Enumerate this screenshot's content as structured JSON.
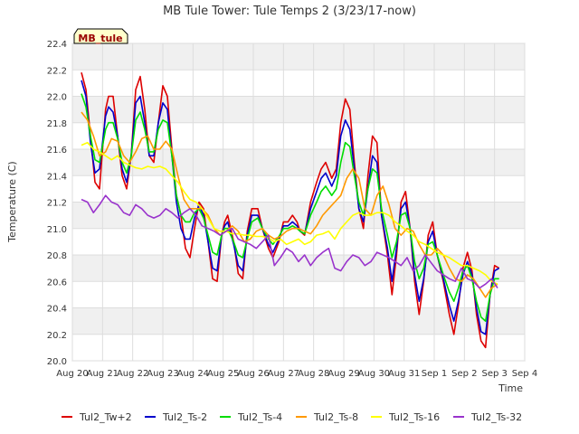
{
  "chart_data": {
    "type": "line",
    "title": "MB Tule Tower: Tule Temps 2 (3/23/17-now)",
    "station_badge": "MB_tule",
    "xlabel": "Time",
    "ylabel": "Temperature (C)",
    "ylim": [
      20.0,
      22.4
    ],
    "xlim": [
      0,
      15
    ],
    "yticks": [
      20.0,
      20.2,
      20.4,
      20.6,
      20.8,
      21.0,
      21.2,
      21.4,
      21.6,
      21.8,
      22.0,
      22.2,
      22.4
    ],
    "xticks": [
      {
        "pos": 0,
        "label": "Aug 20"
      },
      {
        "pos": 1,
        "label": "Aug 21"
      },
      {
        "pos": 2,
        "label": "Aug 22"
      },
      {
        "pos": 3,
        "label": "Aug 23"
      },
      {
        "pos": 4,
        "label": "Aug 24"
      },
      {
        "pos": 5,
        "label": "Aug 25"
      },
      {
        "pos": 6,
        "label": "Aug 26"
      },
      {
        "pos": 7,
        "label": "Aug 27"
      },
      {
        "pos": 8,
        "label": "Aug 28"
      },
      {
        "pos": 9,
        "label": "Aug 29"
      },
      {
        "pos": 10,
        "label": "Aug 30"
      },
      {
        "pos": 11,
        "label": "Aug 31"
      },
      {
        "pos": 12,
        "label": "Sep 1"
      },
      {
        "pos": 13,
        "label": "Sep 2"
      },
      {
        "pos": 14,
        "label": "Sep 3"
      },
      {
        "pos": 15,
        "label": "Sep 4"
      }
    ],
    "grid": true,
    "legend_position": "bottom",
    "series": [
      {
        "name": "Tul2_Tw+2",
        "color": "#dd0000",
        "x": [
          0.3,
          0.45,
          0.6,
          0.75,
          0.9,
          1.1,
          1.2,
          1.35,
          1.5,
          1.65,
          1.8,
          1.95,
          2.1,
          2.25,
          2.4,
          2.55,
          2.7,
          2.85,
          3.0,
          3.15,
          3.3,
          3.45,
          3.6,
          3.75,
          3.9,
          4.05,
          4.2,
          4.35,
          4.5,
          4.65,
          4.8,
          4.95,
          5.05,
          5.15,
          5.35,
          5.5,
          5.65,
          5.8,
          5.95,
          6.15,
          6.3,
          6.5,
          6.65,
          6.85,
          7.0,
          7.15,
          7.3,
          7.45,
          7.55,
          7.7,
          7.9,
          8.1,
          8.25,
          8.4,
          8.6,
          8.75,
          8.9,
          9.05,
          9.2,
          9.35,
          9.5,
          9.65,
          9.8,
          9.95,
          10.1,
          10.25,
          10.45,
          10.6,
          10.75,
          10.9,
          11.05,
          11.2,
          11.35,
          11.5,
          11.65,
          11.8,
          11.95,
          12.1,
          12.3,
          12.5,
          12.65,
          12.8,
          12.95,
          13.1,
          13.25,
          13.4,
          13.55,
          13.7,
          13.85,
          14.0,
          14.15
        ],
        "values": [
          22.18,
          22.05,
          21.7,
          21.35,
          21.3,
          21.9,
          22.0,
          22.0,
          21.7,
          21.4,
          21.3,
          21.55,
          22.05,
          22.15,
          21.9,
          21.55,
          21.5,
          21.8,
          22.08,
          22.0,
          21.6,
          21.25,
          21.1,
          20.85,
          20.78,
          21.0,
          21.2,
          21.15,
          20.9,
          20.62,
          20.6,
          20.95,
          21.05,
          21.1,
          20.9,
          20.66,
          20.62,
          20.98,
          21.15,
          21.15,
          21.0,
          20.85,
          20.78,
          20.9,
          21.05,
          21.05,
          21.1,
          21.05,
          20.98,
          20.95,
          21.2,
          21.35,
          21.45,
          21.5,
          21.38,
          21.45,
          21.8,
          21.98,
          21.9,
          21.5,
          21.15,
          21.0,
          21.4,
          21.7,
          21.65,
          21.1,
          20.8,
          20.5,
          20.8,
          21.2,
          21.28,
          21.0,
          20.6,
          20.35,
          20.6,
          20.95,
          21.05,
          20.8,
          20.6,
          20.35,
          20.2,
          20.42,
          20.7,
          20.82,
          20.68,
          20.35,
          20.15,
          20.1,
          20.5,
          20.72,
          20.7
        ]
      },
      {
        "name": "Tul2_Ts-2",
        "color": "#0000cc",
        "x": [
          0.3,
          0.45,
          0.6,
          0.75,
          0.9,
          1.1,
          1.2,
          1.35,
          1.5,
          1.65,
          1.8,
          1.95,
          2.1,
          2.25,
          2.4,
          2.55,
          2.7,
          2.85,
          3.0,
          3.15,
          3.3,
          3.45,
          3.6,
          3.75,
          3.9,
          4.05,
          4.2,
          4.35,
          4.5,
          4.65,
          4.8,
          4.95,
          5.05,
          5.15,
          5.35,
          5.5,
          5.65,
          5.8,
          5.95,
          6.15,
          6.3,
          6.5,
          6.65,
          6.85,
          7.0,
          7.15,
          7.3,
          7.45,
          7.55,
          7.7,
          7.9,
          8.1,
          8.25,
          8.4,
          8.6,
          8.75,
          8.9,
          9.05,
          9.2,
          9.35,
          9.5,
          9.65,
          9.8,
          9.95,
          10.1,
          10.25,
          10.45,
          10.6,
          10.75,
          10.9,
          11.05,
          11.2,
          11.35,
          11.5,
          11.65,
          11.8,
          11.95,
          12.1,
          12.3,
          12.5,
          12.65,
          12.8,
          12.95,
          13.1,
          13.25,
          13.4,
          13.55,
          13.7,
          13.85,
          14.0,
          14.15
        ],
        "values": [
          22.12,
          22.0,
          21.65,
          21.42,
          21.45,
          21.85,
          21.92,
          21.88,
          21.7,
          21.45,
          21.35,
          21.55,
          21.95,
          22.0,
          21.8,
          21.55,
          21.55,
          21.8,
          21.95,
          21.9,
          21.55,
          21.2,
          21.0,
          20.92,
          20.92,
          21.08,
          21.18,
          21.1,
          20.9,
          20.7,
          20.68,
          20.95,
          21.02,
          21.05,
          20.88,
          20.72,
          20.68,
          20.95,
          21.1,
          21.1,
          21.0,
          20.88,
          20.82,
          20.92,
          21.02,
          21.02,
          21.05,
          21.02,
          20.98,
          20.96,
          21.15,
          21.28,
          21.38,
          21.42,
          21.32,
          21.4,
          21.7,
          21.82,
          21.75,
          21.45,
          21.15,
          21.05,
          21.3,
          21.55,
          21.5,
          21.1,
          20.85,
          20.6,
          20.85,
          21.15,
          21.2,
          21.0,
          20.65,
          20.45,
          20.62,
          20.9,
          20.98,
          20.8,
          20.62,
          20.42,
          20.3,
          20.45,
          20.65,
          20.75,
          20.65,
          20.4,
          20.22,
          20.2,
          20.5,
          20.68,
          20.7
        ]
      },
      {
        "name": "Tul2_Ts-4",
        "color": "#00dd00",
        "x": [
          0.3,
          0.45,
          0.6,
          0.75,
          0.9,
          1.1,
          1.2,
          1.35,
          1.5,
          1.65,
          1.8,
          1.95,
          2.1,
          2.25,
          2.4,
          2.55,
          2.7,
          2.85,
          3.0,
          3.15,
          3.3,
          3.45,
          3.6,
          3.75,
          3.9,
          4.05,
          4.2,
          4.35,
          4.5,
          4.65,
          4.8,
          4.95,
          5.05,
          5.15,
          5.35,
          5.5,
          5.65,
          5.8,
          5.95,
          6.15,
          6.3,
          6.5,
          6.65,
          6.85,
          7.0,
          7.15,
          7.3,
          7.45,
          7.55,
          7.7,
          7.9,
          8.1,
          8.25,
          8.4,
          8.6,
          8.75,
          8.9,
          9.05,
          9.2,
          9.35,
          9.5,
          9.65,
          9.8,
          9.95,
          10.1,
          10.25,
          10.45,
          10.6,
          10.75,
          10.9,
          11.05,
          11.2,
          11.35,
          11.5,
          11.65,
          11.8,
          11.95,
          12.1,
          12.3,
          12.5,
          12.65,
          12.8,
          12.95,
          13.1,
          13.25,
          13.4,
          13.55,
          13.7,
          13.85,
          14.0,
          14.15
        ],
        "values": [
          22.02,
          21.92,
          21.7,
          21.52,
          21.5,
          21.75,
          21.8,
          21.8,
          21.68,
          21.5,
          21.42,
          21.55,
          21.82,
          21.88,
          21.75,
          21.58,
          21.58,
          21.75,
          21.82,
          21.8,
          21.55,
          21.25,
          21.1,
          21.05,
          21.05,
          21.12,
          21.15,
          21.08,
          20.95,
          20.82,
          20.8,
          20.95,
          21.0,
          21.0,
          20.9,
          20.8,
          20.78,
          20.92,
          21.05,
          21.08,
          21.0,
          20.92,
          20.88,
          20.94,
          21.0,
          21.0,
          21.02,
          21.0,
          20.98,
          20.96,
          21.1,
          21.2,
          21.28,
          21.32,
          21.25,
          21.3,
          21.5,
          21.65,
          21.62,
          21.4,
          21.2,
          21.1,
          21.3,
          21.45,
          21.42,
          21.15,
          20.95,
          20.78,
          20.9,
          21.1,
          21.12,
          21.0,
          20.75,
          20.62,
          20.7,
          20.88,
          20.9,
          20.8,
          20.65,
          20.52,
          20.45,
          20.55,
          20.68,
          20.72,
          20.62,
          20.45,
          20.33,
          20.3,
          20.5,
          20.62,
          20.62
        ]
      },
      {
        "name": "Tul2_Ts-8",
        "color": "#ff9900",
        "x": [
          0.3,
          0.5,
          0.7,
          0.9,
          1.1,
          1.3,
          1.5,
          1.7,
          1.9,
          2.1,
          2.3,
          2.5,
          2.7,
          2.9,
          3.1,
          3.3,
          3.5,
          3.7,
          3.9,
          4.1,
          4.3,
          4.5,
          4.7,
          4.9,
          5.1,
          5.3,
          5.5,
          5.7,
          5.9,
          6.1,
          6.3,
          6.5,
          6.7,
          6.9,
          7.1,
          7.3,
          7.5,
          7.7,
          7.9,
          8.1,
          8.3,
          8.5,
          8.7,
          8.9,
          9.1,
          9.3,
          9.5,
          9.7,
          9.9,
          10.1,
          10.3,
          10.5,
          10.7,
          10.9,
          11.1,
          11.3,
          11.5,
          11.7,
          11.9,
          12.1,
          12.3,
          12.5,
          12.7,
          12.9,
          13.1,
          13.3,
          13.5,
          13.7,
          13.9,
          14.1
        ],
        "values": [
          21.88,
          21.82,
          21.7,
          21.55,
          21.58,
          21.68,
          21.66,
          21.55,
          21.5,
          21.58,
          21.68,
          21.7,
          21.6,
          21.6,
          21.66,
          21.6,
          21.4,
          21.22,
          21.15,
          21.15,
          21.15,
          21.1,
          21.0,
          20.95,
          20.98,
          21.02,
          20.98,
          20.9,
          20.92,
          20.98,
          21.0,
          20.95,
          20.92,
          20.94,
          20.98,
          21.0,
          21.0,
          20.98,
          20.96,
          21.02,
          21.1,
          21.15,
          21.2,
          21.25,
          21.38,
          21.45,
          21.38,
          21.15,
          21.1,
          21.25,
          21.32,
          21.18,
          21.0,
          20.95,
          21.0,
          20.98,
          20.88,
          20.8,
          20.8,
          20.85,
          20.8,
          20.7,
          20.62,
          20.6,
          20.65,
          20.62,
          20.55,
          20.48,
          20.55,
          20.58
        ]
      },
      {
        "name": "Tul2_Ts-16",
        "color": "#ffff00",
        "x": [
          0.3,
          0.5,
          0.7,
          0.9,
          1.1,
          1.3,
          1.5,
          1.7,
          1.9,
          2.1,
          2.3,
          2.5,
          2.7,
          2.9,
          3.1,
          3.3,
          3.5,
          3.7,
          3.9,
          4.1,
          4.3,
          4.5,
          4.7,
          4.9,
          5.1,
          5.3,
          5.5,
          5.7,
          5.9,
          6.1,
          6.3,
          6.5,
          6.7,
          6.9,
          7.1,
          7.3,
          7.5,
          7.7,
          7.9,
          8.1,
          8.3,
          8.5,
          8.7,
          8.9,
          9.1,
          9.3,
          9.5,
          9.7,
          9.9,
          10.1,
          10.3,
          10.5,
          10.7,
          10.9,
          11.1,
          11.3,
          11.5,
          11.7,
          11.9,
          12.1,
          12.3,
          12.5,
          12.7,
          12.9,
          13.1,
          13.3,
          13.5,
          13.7,
          13.9,
          14.1
        ],
        "values": [
          21.63,
          21.65,
          21.6,
          21.58,
          21.55,
          21.52,
          21.55,
          21.5,
          21.48,
          21.46,
          21.45,
          21.47,
          21.46,
          21.47,
          21.45,
          21.4,
          21.35,
          21.28,
          21.22,
          21.2,
          21.15,
          21.08,
          21.0,
          20.98,
          20.98,
          20.96,
          20.96,
          20.95,
          20.95,
          20.94,
          20.94,
          20.93,
          20.9,
          20.92,
          20.88,
          20.9,
          20.92,
          20.88,
          20.9,
          20.95,
          20.96,
          20.98,
          20.92,
          21.0,
          21.05,
          21.1,
          21.12,
          21.1,
          21.1,
          21.12,
          21.12,
          21.1,
          21.05,
          21.02,
          20.98,
          20.95,
          20.9,
          20.88,
          20.85,
          20.82,
          20.8,
          20.78,
          20.75,
          20.72,
          20.72,
          20.7,
          20.68,
          20.65,
          20.6,
          20.58
        ]
      },
      {
        "name": "Tul2_Ts-32",
        "color": "#9933cc",
        "x": [
          0.3,
          0.5,
          0.7,
          0.9,
          1.1,
          1.3,
          1.5,
          1.7,
          1.9,
          2.1,
          2.3,
          2.5,
          2.7,
          2.9,
          3.1,
          3.3,
          3.5,
          3.7,
          3.9,
          4.1,
          4.3,
          4.5,
          4.7,
          4.9,
          5.1,
          5.3,
          5.5,
          5.7,
          5.9,
          6.1,
          6.3,
          6.5,
          6.7,
          6.9,
          7.1,
          7.3,
          7.5,
          7.7,
          7.9,
          8.1,
          8.3,
          8.5,
          8.7,
          8.9,
          9.1,
          9.3,
          9.5,
          9.7,
          9.9,
          10.1,
          10.3,
          10.5,
          10.7,
          10.9,
          11.1,
          11.3,
          11.5,
          11.7,
          11.9,
          12.1,
          12.3,
          12.5,
          12.7,
          12.9,
          13.1,
          13.3,
          13.5,
          13.7,
          13.9,
          14.1
        ],
        "values": [
          21.22,
          21.2,
          21.12,
          21.18,
          21.25,
          21.2,
          21.18,
          21.12,
          21.1,
          21.18,
          21.15,
          21.1,
          21.08,
          21.1,
          21.15,
          21.12,
          21.08,
          21.12,
          21.15,
          21.1,
          21.02,
          21.0,
          20.98,
          20.95,
          20.98,
          21.0,
          20.92,
          20.9,
          20.88,
          20.85,
          20.9,
          20.95,
          20.72,
          20.78,
          20.85,
          20.82,
          20.75,
          20.8,
          20.72,
          20.78,
          20.82,
          20.85,
          20.7,
          20.68,
          20.75,
          20.8,
          20.78,
          20.72,
          20.75,
          20.82,
          20.8,
          20.78,
          20.75,
          20.72,
          20.78,
          20.68,
          20.72,
          20.8,
          20.74,
          20.68,
          20.65,
          20.62,
          20.6,
          20.7,
          20.62,
          20.6,
          20.55,
          20.58,
          20.62,
          20.55
        ]
      }
    ]
  }
}
